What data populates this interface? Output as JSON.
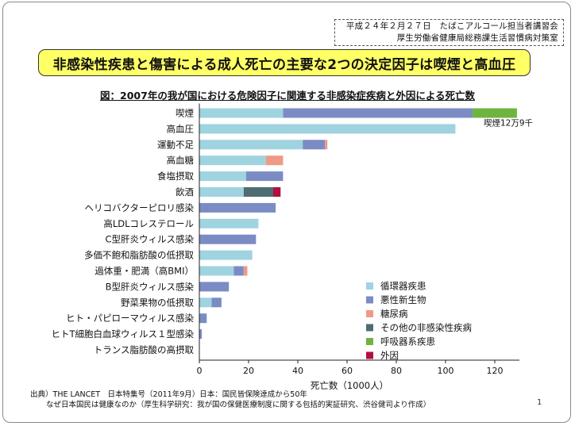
{
  "header": {
    "line1": "平成２４年２月２７日　たばこアルコール担当者講習会",
    "line2": "厚生労働省健康局総務課生活習慣病対策室"
  },
  "banner_title": "非感染性疾患と傷害による成人死亡の主要な2つの決定因子は喫煙と高血圧",
  "chart_heading": "図：2007年の我が国における危険因子に関連する非感染症疾病と外因による死亡数",
  "footer": {
    "source_label": "出典）",
    "source_journal": "THE LANCET",
    "source_text": "　日本特集号（2011年9月）日本：国民皆保険達成から50年",
    "line2": "なぜ日本国民は健康なのか（厚生科学研究：我が国の保健医療制度に関する包括的実証研究、渋谷健司より作成）"
  },
  "page_number": "1",
  "colors": {
    "banner_bg": "#ffff66",
    "circulatory": "#9fd3e0",
    "cancer": "#7b8cc4",
    "diabetes": "#ee9a84",
    "other_ncd": "#4f6d73",
    "respiratory": "#6fb43f",
    "external": "#b2103f"
  },
  "chart_data": {
    "type": "bar",
    "orientation": "horizontal",
    "stacked": true,
    "title": "図：2007年の我が国における危険因子に関連する非感染症疾病と外因による死亡数",
    "xlabel": "死亡数（1000人）",
    "ylabel": "",
    "xlim": [
      0,
      130
    ],
    "xticks": [
      0,
      20,
      40,
      60,
      80,
      100,
      120
    ],
    "grid": false,
    "legend_position": "bottom-right",
    "categories": [
      "喫煙",
      "高血圧",
      "運動不足",
      "高血糖",
      "食塩摂取",
      "飲酒",
      "ヘリコバクターピロリ感染",
      "高LDLコレステロール",
      "C型肝炎ウィルス感染",
      "多価不飽和脂肪酸の低摂取",
      "過体重・肥満（高BMI）",
      "B型肝炎ウィルス感染",
      "野菜果物の低摂取",
      "ヒト・パピローマウィルス感染",
      "ヒトT細胞白血球ウィルス１型感染",
      "トランス脂肪酸の高摂取"
    ],
    "series": [
      {
        "name": "循環器疾患",
        "color": "#9fd3e0",
        "values": [
          34,
          104,
          42,
          27,
          19,
          18,
          0,
          24,
          0,
          21.5,
          14,
          0,
          5,
          0,
          0,
          0
        ]
      },
      {
        "name": "悪性新生物",
        "color": "#7b8cc4",
        "values": [
          77,
          0,
          9,
          0,
          15,
          0,
          31,
          0,
          23,
          0,
          4,
          12,
          4,
          3,
          1,
          0
        ]
      },
      {
        "name": "糖尿病",
        "color": "#ee9a84",
        "values": [
          0,
          0,
          1,
          7,
          0,
          0,
          0,
          0,
          0,
          0,
          1.5,
          0,
          0,
          0,
          0,
          0
        ]
      },
      {
        "name": "その他の非感染性疾病",
        "color": "#4f6d73",
        "values": [
          0,
          0,
          0,
          0,
          0,
          12,
          0,
          0,
          0,
          0,
          0,
          0,
          0,
          0,
          0,
          0
        ]
      },
      {
        "name": "呼吸器系疾患",
        "color": "#6fb43f",
        "values": [
          18,
          0,
          0,
          0,
          0,
          0,
          0,
          0,
          0,
          0,
          0,
          0,
          0,
          0,
          0,
          0
        ]
      },
      {
        "name": "外因",
        "color": "#b2103f",
        "values": [
          0,
          0,
          0,
          0,
          0,
          3,
          0,
          0,
          0,
          0,
          0,
          0,
          0,
          0,
          0,
          0
        ]
      }
    ],
    "annotations": [
      {
        "category": "喫煙",
        "text": "喫煙12万9千"
      }
    ]
  }
}
